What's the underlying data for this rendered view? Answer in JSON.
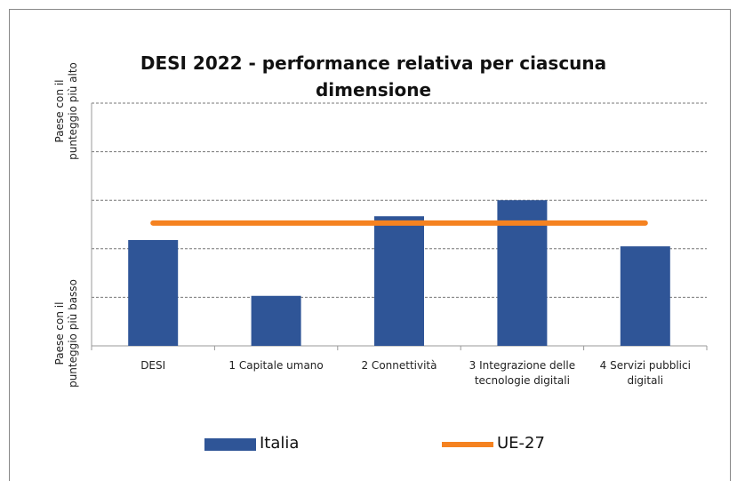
{
  "chart_data": {
    "type": "bar",
    "title": "DESI 2022 - performance relativa per ciascuna dimensione",
    "y_label_top": "Paese con il punteggio più alto",
    "y_label_bottom": "Paese con il punteggio più basso",
    "categories": [
      "DESI",
      "1 Capitale umano",
      "2 Connettività",
      "3 Integrazione delle tecnologie digitali",
      "4 Servizi pubblici digitali"
    ],
    "series": [
      {
        "name": "Italia",
        "type": "bar",
        "color": "#2f5597",
        "values": [
          2.18,
          1.03,
          2.67,
          3.0,
          2.05
        ]
      },
      {
        "name": "UE-27",
        "type": "line",
        "color": "#f58220",
        "values": [
          2.53,
          2.53,
          2.53,
          2.53,
          2.53
        ]
      }
    ],
    "ylim": [
      0,
      5
    ],
    "yticks": [
      1,
      2,
      3,
      4,
      5
    ],
    "grid": true
  }
}
